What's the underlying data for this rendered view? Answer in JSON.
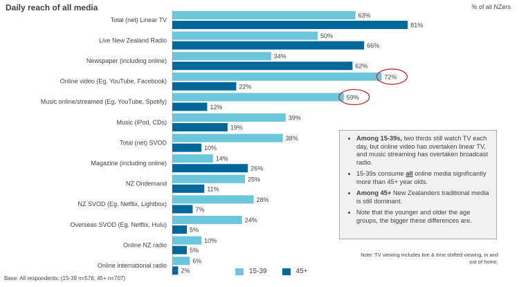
{
  "title": "Daily reach of all media",
  "unit_label": "% of all NZers",
  "colors": {
    "series_15_39": "#6bc6dc",
    "series_45_plus": "#00689b",
    "highlight": "#c0282d"
  },
  "chart_data": {
    "type": "bar",
    "orientation": "horizontal",
    "title": "Daily reach of all media",
    "categories": [
      "Total (net) Linear TV",
      "Live New Zealand Radio",
      "Newspaper (including online)",
      "Online video (Eg. YouTube, Facebook)",
      "Music online/streamed (Eg. YouTube, Spotify)",
      "Music (iPod, CDs)",
      "Total (net) SVOD",
      "Magazine (including online)",
      "NZ Ondemand",
      "NZ SVOD (Eg. Netflix, Lightbox)",
      "Overseas SVOD (Eg. Netflix, Hulu)",
      "Online NZ radio",
      "Online international radio"
    ],
    "series": [
      {
        "name": "15-39",
        "values": [
          63,
          50,
          34,
          72,
          59,
          39,
          38,
          14,
          25,
          28,
          24,
          10,
          6
        ]
      },
      {
        "name": "45+",
        "values": [
          81,
          66,
          62,
          22,
          12,
          19,
          10,
          26,
          11,
          7,
          5,
          5,
          2
        ]
      }
    ],
    "xlim": [
      0,
      100
    ],
    "value_format": "%",
    "legend": "bottom",
    "highlighted": [
      {
        "series": "15-39",
        "category": "Online video (Eg. YouTube, Facebook)"
      },
      {
        "series": "15-39",
        "category": "Music online/streamed (Eg. YouTube, Spotify)"
      }
    ]
  },
  "callout": {
    "items": [
      {
        "bold": "Among 15-39s,",
        "text": " two thirds still watch TV each day, but online video has overtaken linear TV, and music streaming has overtaken broadcast radio."
      },
      {
        "pre": "15-39s consume ",
        "underline": "all",
        "post": " online media significantly more than 45+ year olds."
      },
      {
        "bold": "Among 45+",
        "text": " New Zealanders traditional media is still dominant."
      },
      {
        "text": "Note that the younger and older the age groups, the bigger these differences are."
      }
    ]
  },
  "note": "Note: TV viewing includes live & time shifted viewing, in and out of home.",
  "base": "Base: All respondents: (15-39 n=576; 45+ n=707)"
}
